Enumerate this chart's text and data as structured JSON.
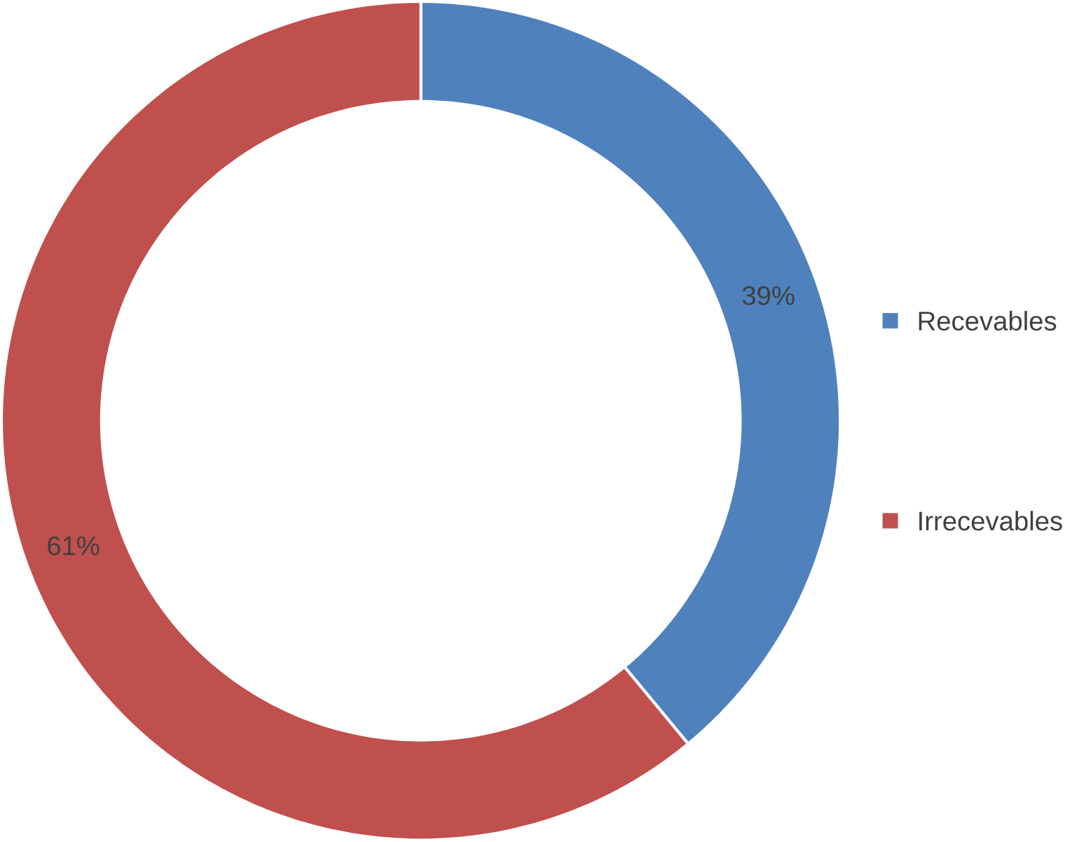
{
  "chart_data": {
    "type": "donut",
    "categories": [
      "Recevables",
      "Irrecevables"
    ],
    "values": [
      39,
      61
    ],
    "colors": [
      "#4f81bd",
      "#c0504d"
    ],
    "value_labels": [
      "39%",
      "61%"
    ],
    "legend": "right"
  }
}
